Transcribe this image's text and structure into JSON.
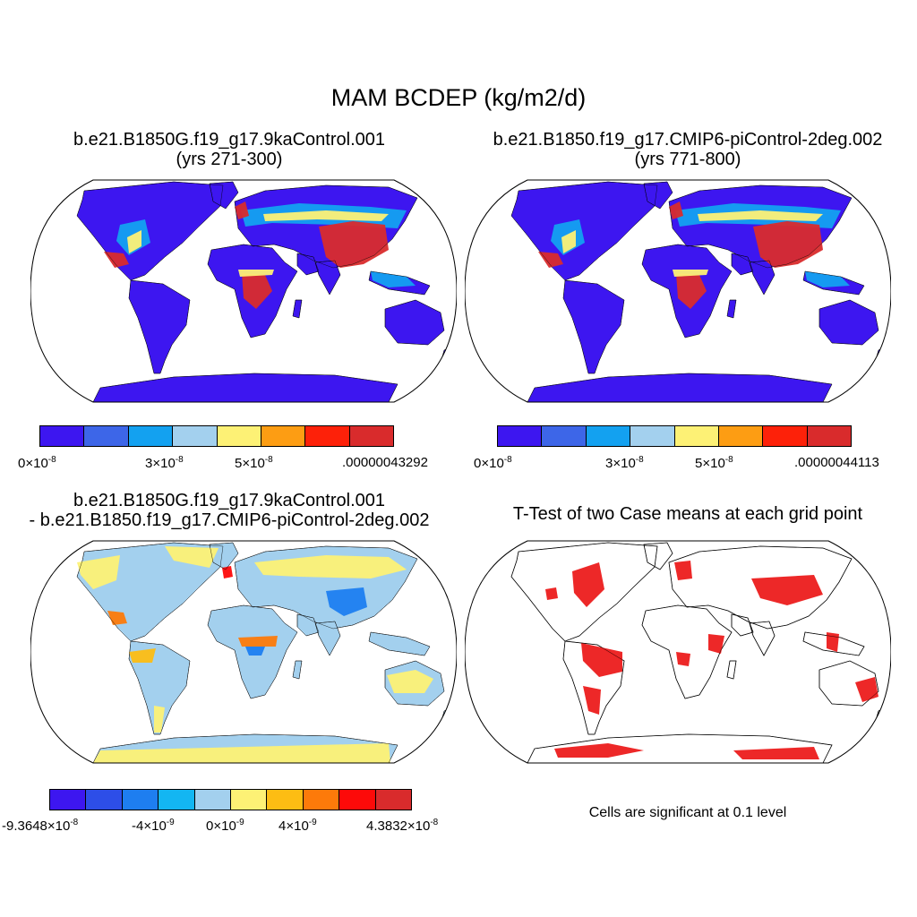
{
  "title": "MAM BCDEP (kg/m2/d)",
  "panels": [
    {
      "name": "case1",
      "line1": "b.e21.B1850G.f19_g17.9kaControl.001",
      "line2": "(yrs 271-300)",
      "colorbar": {
        "colors": [
          "#3d16f0",
          "#3d66e8",
          "#13a1f0",
          "#a3d0ee",
          "#fdf175",
          "#fd9d13",
          "#fd2109",
          "#d92b2c"
        ],
        "labels": [
          {
            "base": "0×10",
            "exp": "-8"
          },
          {
            "base": "3×10",
            "exp": "-8"
          },
          {
            "base": "5×10",
            "exp": "-8"
          },
          {
            "base": ".00000043292",
            "exp": ""
          }
        ]
      }
    },
    {
      "name": "case2",
      "line1": "b.e21.B1850.f19_g17.CMIP6-piControl-2deg.002",
      "line2": "(yrs 771-800)",
      "colorbar": {
        "colors": [
          "#3d16f0",
          "#3d66e8",
          "#13a1f0",
          "#a3d0ee",
          "#fdf175",
          "#fd9d13",
          "#fd2109",
          "#d92b2c"
        ],
        "labels": [
          {
            "base": "0×10",
            "exp": "-8"
          },
          {
            "base": "3×10",
            "exp": "-8"
          },
          {
            "base": "5×10",
            "exp": "-8"
          },
          {
            "base": ".00000044113",
            "exp": ""
          }
        ]
      }
    },
    {
      "name": "difference",
      "line1": "b.e21.B1850G.f19_g17.9kaControl.001",
      "line2": "- b.e21.B1850.f19_g17.CMIP6-piControl-2deg.002",
      "colorbar": {
        "colors": [
          "#3d16f0",
          "#2d4ee8",
          "#1e7ef0",
          "#13b6f2",
          "#a3d0ee",
          "#fdf175",
          "#fdbd13",
          "#fd7a0a",
          "#fd0a09",
          "#d92b2c"
        ],
        "labels": [
          {
            "base": "-9.3648×10",
            "exp": "-8"
          },
          {
            "base": "-4×10",
            "exp": "-9"
          },
          {
            "base": "0×10",
            "exp": "-9"
          },
          {
            "base": "4×10",
            "exp": "-9"
          },
          {
            "base": "4.3832×10",
            "exp": "-8"
          }
        ]
      }
    },
    {
      "name": "ttest",
      "line1": "T-Test of two Case means at each grid point",
      "note": "Cells are significant at 0.1 level",
      "color": "#ec1c1c"
    }
  ]
}
